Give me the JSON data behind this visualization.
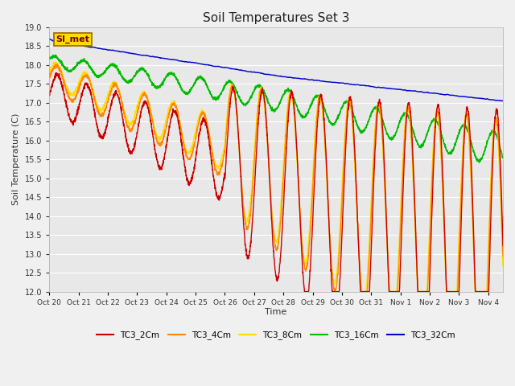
{
  "title": "Soil Temperatures Set 3",
  "xlabel": "Time",
  "ylabel": "Soil Temperature (C)",
  "ylim": [
    12.0,
    19.0
  ],
  "yticks": [
    12.0,
    12.5,
    13.0,
    13.5,
    14.0,
    14.5,
    15.0,
    15.5,
    16.0,
    16.5,
    17.0,
    17.5,
    18.0,
    18.5,
    19.0
  ],
  "plot_bg_color": "#e8e8e8",
  "fig_bg_color": "#f0f0f0",
  "series_colors": {
    "TC3_2Cm": "#cc0000",
    "TC3_4Cm": "#ff8800",
    "TC3_8Cm": "#ffdd00",
    "TC3_16Cm": "#00bb00",
    "TC3_32Cm": "#0000cc"
  },
  "x_labels": [
    "Oct 20",
    "Oct 21",
    "Oct 22",
    "Oct 23",
    "Oct 24",
    "Oct 25",
    "Oct 26",
    "Oct 27",
    "Oct 28",
    "Oct 29",
    "Oct 30",
    "Oct 31",
    "Nov 1",
    "Nov 2",
    "Nov 3",
    "Nov 4"
  ],
  "si_met_label": "SI_met",
  "legend_entries": [
    "TC3_2Cm",
    "TC3_4Cm",
    "TC3_8Cm",
    "TC3_16Cm",
    "TC3_32Cm"
  ]
}
